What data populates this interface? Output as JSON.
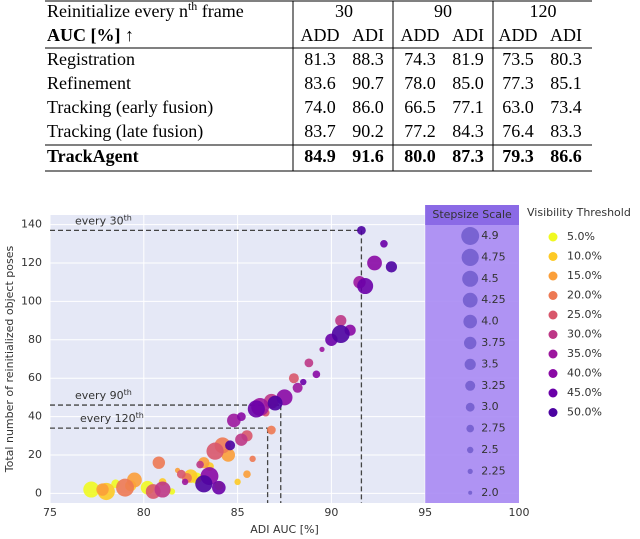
{
  "table": {
    "header": {
      "pre": "Reinitialize every n",
      "sup": "th",
      "post": " frame",
      "groups": [
        "30",
        "90",
        "120"
      ]
    },
    "subheader": {
      "metric": "AUC [%] ↑",
      "cols": [
        "ADD",
        "ADI",
        "ADD",
        "ADI",
        "ADD",
        "ADI"
      ]
    },
    "rows": [
      {
        "method": "Registration",
        "values": [
          "81.3",
          "88.3",
          "74.3",
          "81.9",
          "73.5",
          "80.3"
        ]
      },
      {
        "method": "Refinement",
        "values": [
          "83.6",
          "90.7",
          "78.0",
          "85.0",
          "77.3",
          "85.1"
        ]
      },
      {
        "method": "Tracking (early fusion)",
        "values": [
          "74.0",
          "86.0",
          "66.5",
          "77.1",
          "63.0",
          "73.4"
        ]
      },
      {
        "method": "Tracking (late fusion)",
        "values": [
          "83.7",
          "90.2",
          "77.2",
          "84.3",
          "76.4",
          "83.3"
        ]
      },
      {
        "method": "TrackAgent",
        "values": [
          "84.9",
          "91.6",
          "80.0",
          "87.3",
          "79.3",
          "86.6"
        ]
      }
    ]
  },
  "chart_data": {
    "type": "scatter",
    "x_label": "ADI AUC [%]",
    "y_label": "Total number of reinitialized object poses",
    "xlim": [
      75,
      100
    ],
    "ylim": [
      -5,
      145
    ],
    "xticks": [
      75,
      80,
      85,
      90,
      95,
      100
    ],
    "yticks": [
      0,
      20,
      40,
      60,
      80,
      100,
      120,
      140
    ],
    "grid": true,
    "legend_title": "Visibility Threshold",
    "size_legend": {
      "title": "Stepsize Scale",
      "values": [
        4.9,
        4.75,
        4.5,
        4.25,
        4.0,
        3.75,
        3.5,
        3.25,
        3.0,
        2.75,
        2.5,
        2.25,
        2.0
      ],
      "value_labels": [
        "4.9",
        "4.75",
        "4.5",
        "4.25",
        "4.0",
        "3.75",
        "3.5",
        "3.25",
        "3.0",
        "2.75",
        "2.5",
        "2.25",
        "2.0"
      ]
    },
    "annotations": [
      {
        "text": "every 30",
        "sup": "th",
        "x": 91.6,
        "y": 137
      },
      {
        "text": "every 90",
        "sup": "th",
        "x": 87.3,
        "y": 46
      },
      {
        "text": "every 120",
        "sup": "th",
        "x": 86.6,
        "y": 34
      }
    ],
    "series": [
      {
        "name": "5.0%",
        "color": "#f0f921",
        "x": [
          77.2,
          78.5,
          80.2,
          81.5,
          82.8,
          84.0
        ],
        "y": [
          2,
          5,
          3,
          1,
          8,
          4
        ],
        "sizes": [
          4.5,
          3.0,
          4.0,
          2.5,
          3.5,
          3.0
        ]
      },
      {
        "name": "10.0%",
        "color": "#fdca26",
        "x": [
          78.0,
          79.3,
          81.0,
          82.5,
          83.5,
          85.0
        ],
        "y": [
          1,
          4,
          6,
          9,
          14,
          6
        ],
        "sizes": [
          4.75,
          3.5,
          2.75,
          4.0,
          3.0,
          2.5
        ]
      },
      {
        "name": "15.0%",
        "color": "#fb9f3a",
        "x": [
          77.8,
          79.5,
          81.8,
          83.2,
          84.5,
          85.5
        ],
        "y": [
          2,
          7,
          12,
          16,
          20,
          10
        ],
        "sizes": [
          3.75,
          4.25,
          2.25,
          3.5,
          4.0,
          2.75
        ]
      },
      {
        "name": "20.0%",
        "color": "#ed7953",
        "x": [
          79.0,
          80.8,
          82.3,
          84.2,
          85.8,
          86.8
        ],
        "y": [
          3,
          16,
          8,
          25,
          18,
          33
        ],
        "sizes": [
          4.9,
          3.75,
          3.25,
          4.5,
          2.5,
          3.0
        ]
      },
      {
        "name": "25.0%",
        "color": "#d8576b",
        "x": [
          80.5,
          82.0,
          83.8,
          85.5,
          86.5,
          88.0
        ],
        "y": [
          1,
          10,
          22,
          30,
          42,
          60
        ],
        "sizes": [
          4.25,
          3.0,
          4.75,
          3.5,
          2.75,
          3.25
        ]
      },
      {
        "name": "30.0%",
        "color": "#bd3786",
        "x": [
          81.0,
          83.0,
          85.2,
          86.8,
          88.8,
          90.5
        ],
        "y": [
          2,
          15,
          28,
          48,
          68,
          90
        ],
        "sizes": [
          4.5,
          2.75,
          3.75,
          4.25,
          3.0,
          3.5
        ]
      },
      {
        "name": "35.0%",
        "color": "#9c179e",
        "x": [
          82.2,
          84.8,
          86.2,
          88.2,
          89.5,
          91.5
        ],
        "y": [
          6,
          38,
          45,
          55,
          75,
          110
        ],
        "sizes": [
          2.5,
          4.0,
          4.9,
          3.25,
          2.25,
          3.75
        ]
      },
      {
        "name": "40.0%",
        "color": "#8a09a5",
        "x": [
          83.5,
          85.2,
          87.5,
          89.2,
          91.0,
          92.3
        ],
        "y": [
          9,
          40,
          50,
          62,
          85,
          120
        ],
        "sizes": [
          4.9,
          3.0,
          4.5,
          2.75,
          3.5,
          4.25
        ]
      },
      {
        "name": "45.0%",
        "color": "#6a00a8",
        "x": [
          84.0,
          86.0,
          88.5,
          90.0,
          91.8,
          92.8
        ],
        "y": [
          3,
          44,
          58,
          80,
          108,
          130
        ],
        "sizes": [
          4.0,
          4.75,
          2.5,
          3.75,
          4.5,
          2.75
        ]
      },
      {
        "name": "50.0%",
        "color": "#4c02a1",
        "x": [
          83.2,
          84.6,
          87.0,
          90.5,
          91.6,
          93.2
        ],
        "y": [
          5,
          25,
          47,
          83,
          137,
          118
        ],
        "sizes": [
          4.75,
          3.25,
          4.25,
          4.9,
          3.0,
          3.5
        ]
      }
    ]
  }
}
